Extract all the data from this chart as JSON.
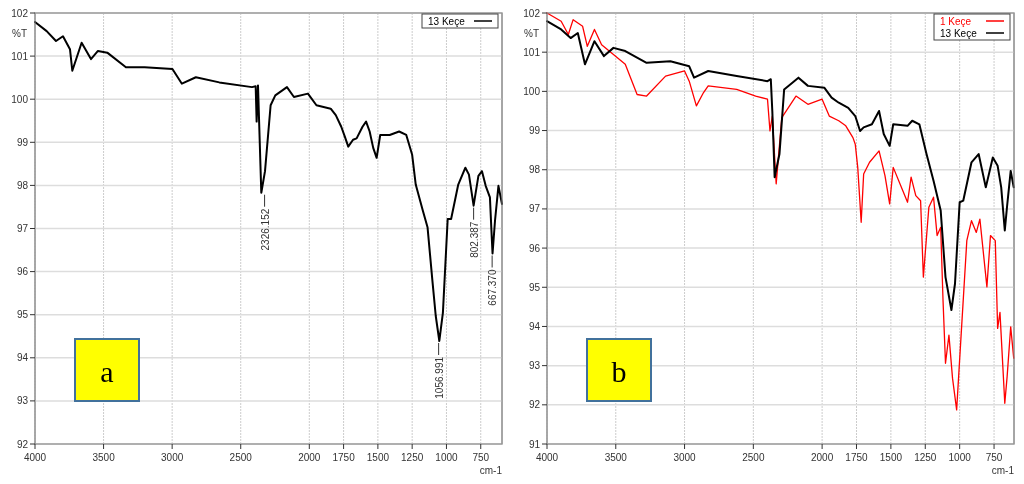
{
  "chart_data": [
    {
      "type": "line",
      "xlabel": "cm-1",
      "ylabel": "%T",
      "xlim": [
        4000,
        595
      ],
      "ylim": [
        92,
        102
      ],
      "xticks": [
        4000,
        3500,
        3000,
        2500,
        2000,
        1750,
        1500,
        1250,
        1000,
        750
      ],
      "yticks": [
        92,
        93,
        94,
        95,
        96,
        97,
        98,
        99,
        100,
        101,
        102
      ],
      "grid": true,
      "legend": "top right",
      "line_style": "solid",
      "series": [
        {
          "name": "13 Keçe",
          "color": "#000000",
          "x": [
            4000,
            3915,
            3847,
            3796,
            3745,
            3728,
            3660,
            3592,
            3541,
            3473,
            3337,
            3201,
            2998,
            2929,
            2827,
            2656,
            2418,
            2391,
            2384,
            2374,
            2350,
            2323,
            2282,
            2248,
            2163,
            2112,
            2010,
            1948,
            1844,
            1807,
            1767,
            1741,
            1716,
            1681,
            1655,
            1612,
            1586,
            1560,
            1534,
            1509,
            1483,
            1414,
            1345,
            1293,
            1250,
            1224,
            1172,
            1138,
            1103,
            1078,
            1052,
            1026,
            991,
            966,
            914,
            862,
            836,
            802,
            767,
            741,
            714,
            683,
            672,
            664,
            646,
            621,
            595
          ],
          "values": [
            101.79,
            101.58,
            101.35,
            101.46,
            101.16,
            100.66,
            101.31,
            100.93,
            101.12,
            101.08,
            100.74,
            100.74,
            100.7,
            100.36,
            100.51,
            100.39,
            100.28,
            100.3,
            99.48,
            100.32,
            97.83,
            98.33,
            99.86,
            100.09,
            100.28,
            100.05,
            100.13,
            99.86,
            99.78,
            99.63,
            99.36,
            99.13,
            98.9,
            99.06,
            99.09,
            99.36,
            99.48,
            99.25,
            98.87,
            98.64,
            99.17,
            99.17,
            99.25,
            99.17,
            98.71,
            98.02,
            97.41,
            97.03,
            95.81,
            94.97,
            94.39,
            95.04,
            97.22,
            97.22,
            98.02,
            98.41,
            98.25,
            97.53,
            98.22,
            98.33,
            97.99,
            97.72,
            96.95,
            96.42,
            97.18,
            97.99,
            97.57
          ]
        }
      ],
      "annotations": [
        {
          "text": "2326.152",
          "x": 2326,
          "y": 97.83
        },
        {
          "text": "1056.991",
          "x": 1057,
          "y": 94.39
        },
        {
          "text": "802.387",
          "x": 802,
          "y": 97.53
        },
        {
          "text": "667.370",
          "x": 667,
          "y": 96.42
        },
        "a"
      ]
    },
    {
      "type": "line",
      "xlabel": "cm-1",
      "ylabel": "%T",
      "xlim": [
        4000,
        605
      ],
      "ylim": [
        91,
        102
      ],
      "xticks": [
        4000,
        3500,
        3000,
        2500,
        2000,
        1750,
        1500,
        1250,
        1000,
        750
      ],
      "yticks": [
        91,
        92,
        93,
        94,
        95,
        96,
        97,
        98,
        99,
        100,
        101,
        102
      ],
      "grid": true,
      "legend": "top right",
      "line_style": "solid",
      "series": [
        {
          "name": "1 Keçe",
          "color": "#ff0000",
          "x": [
            4000,
            3897,
            3845,
            3810,
            3741,
            3707,
            3655,
            3603,
            3517,
            3431,
            3345,
            3276,
            3138,
            3000,
            2966,
            2914,
            2862,
            2828,
            2621,
            2483,
            2397,
            2379,
            2362,
            2334,
            2293,
            2190,
            2103,
            2000,
            1948,
            1879,
            1828,
            1776,
            1759,
            1741,
            1716,
            1698,
            1655,
            1586,
            1543,
            1509,
            1483,
            1414,
            1379,
            1353,
            1319,
            1284,
            1264,
            1224,
            1190,
            1164,
            1138,
            1121,
            1103,
            1078,
            1052,
            1022,
            991,
            948,
            914,
            879,
            853,
            802,
            776,
            741,
            724,
            707,
            672,
            655,
            629,
            607
          ],
          "values": [
            102.0,
            101.79,
            101.45,
            101.83,
            101.66,
            101.15,
            101.58,
            101.19,
            100.94,
            100.69,
            99.92,
            99.88,
            100.39,
            100.52,
            100.26,
            99.63,
            99.97,
            100.14,
            100.05,
            99.88,
            99.8,
            98.99,
            99.37,
            97.64,
            99.33,
            99.88,
            99.67,
            99.8,
            99.37,
            99.25,
            99.12,
            98.82,
            98.65,
            98.06,
            96.66,
            97.89,
            98.19,
            98.48,
            97.85,
            97.13,
            98.06,
            97.47,
            97.17,
            97.81,
            97.34,
            97.21,
            95.26,
            97.04,
            97.3,
            96.32,
            96.53,
            94.67,
            93.06,
            93.78,
            92.68,
            91.87,
            93.69,
            96.19,
            96.7,
            96.4,
            96.74,
            95.01,
            96.32,
            96.19,
            93.95,
            94.36,
            92.04,
            92.72,
            93.99,
            93.19
          ]
        },
        {
          "name": "13 Keçe",
          "color": "#000000",
          "x": [
            4000,
            3897,
            3828,
            3776,
            3724,
            3655,
            3586,
            3517,
            3431,
            3276,
            3103,
            2966,
            2931,
            2828,
            2621,
            2397,
            2373,
            2362,
            2345,
            2310,
            2276,
            2172,
            2103,
            1983,
            1931,
            1879,
            1810,
            1759,
            1724,
            1698,
            1638,
            1586,
            1552,
            1509,
            1483,
            1379,
            1345,
            1293,
            1241,
            1190,
            1138,
            1103,
            1060,
            1034,
            1000,
            974,
            914,
            862,
            810,
            759,
            724,
            698,
            672,
            655,
            629,
            607
          ],
          "values": [
            101.79,
            101.58,
            101.36,
            101.49,
            100.69,
            101.28,
            100.9,
            101.11,
            101.03,
            100.73,
            100.77,
            100.64,
            100.35,
            100.52,
            100.39,
            100.26,
            100.31,
            99.5,
            97.81,
            98.4,
            100.05,
            100.35,
            100.14,
            100.09,
            99.84,
            99.71,
            99.58,
            99.37,
            98.99,
            99.08,
            99.16,
            99.5,
            98.91,
            98.61,
            99.16,
            99.12,
            99.25,
            99.16,
            98.4,
            97.72,
            96.96,
            95.26,
            94.42,
            95.09,
            97.17,
            97.21,
            98.19,
            98.4,
            97.55,
            98.31,
            98.1,
            97.55,
            96.45,
            97.08,
            97.97,
            97.55
          ]
        }
      ],
      "annotations": [
        "b"
      ]
    }
  ]
}
